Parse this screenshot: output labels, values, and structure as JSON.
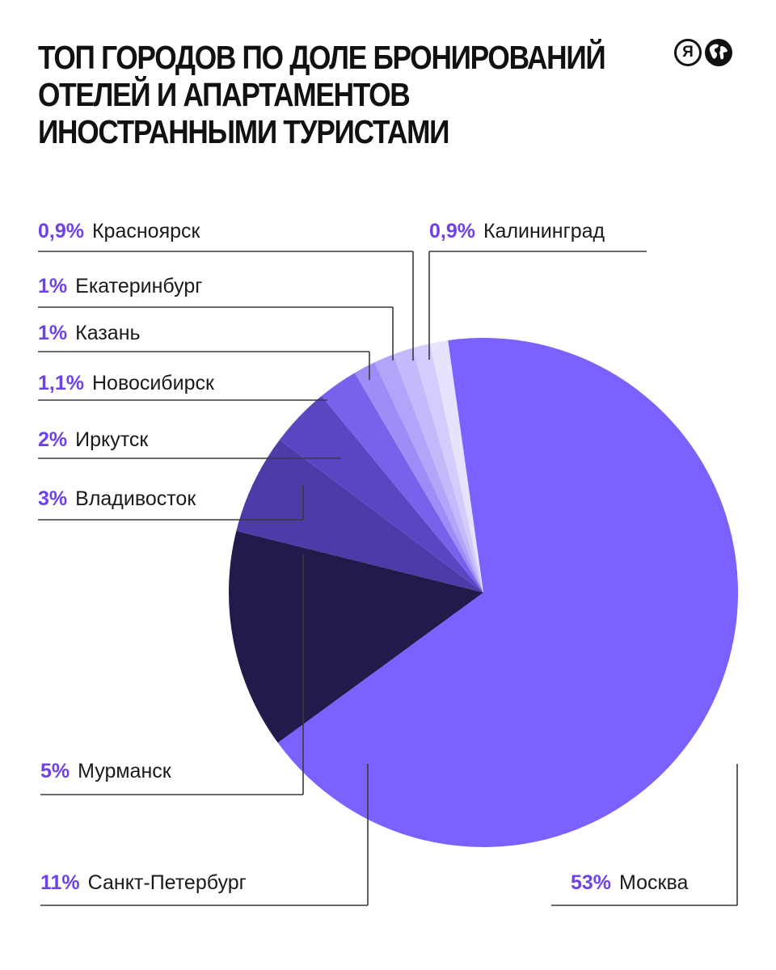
{
  "title_lines": [
    "ТОП ГОРОДОВ ПО ДОЛЕ БРОНИРОВАНИЙ",
    "ОТЕЛЕЙ И АПАРТАМЕНТОВ",
    "ИНОСТРАННЫМИ ТУРИСТАМИ"
  ],
  "logo": {
    "letter": "Я",
    "icons": [
      "yandex-logo-icon",
      "globe-icon"
    ]
  },
  "chart_data": {
    "type": "pie",
    "title": "ТОП ГОРОДОВ ПО ДОЛЕ БРОНИРОВАНИЙ ОТЕЛЕЙ И АПАРТАМЕНТОВ ИНОСТРАННЫМИ ТУРИСТАМИ",
    "slices": [
      {
        "label": "Москва",
        "value_label": "53%",
        "value": 53,
        "color": "#7b61ff"
      },
      {
        "label": "Санкт-Петербург",
        "value_label": "11%",
        "value": 11,
        "color": "#221a4a"
      },
      {
        "label": "Мурманск",
        "value_label": "5%",
        "value": 5,
        "color": "#4e3ba8"
      },
      {
        "label": "Владивосток",
        "value_label": "3%",
        "value": 3,
        "color": "#5b46c2"
      },
      {
        "label": "Иркутск",
        "value_label": "2%",
        "value": 2,
        "color": "#7a61ec"
      },
      {
        "label": "Новосибирск",
        "value_label": "1,1%",
        "value": 1.1,
        "color": "#a08cf7"
      },
      {
        "label": "Казань",
        "value_label": "1%",
        "value": 1,
        "color": "#b3a4f9"
      },
      {
        "label": "Екатеринбург",
        "value_label": "1%",
        "value": 1,
        "color": "#c4b9fb"
      },
      {
        "label": "Красноярск",
        "value_label": "0,9%",
        "value": 0.9,
        "color": "#d4ccfc"
      },
      {
        "label": "Калининград",
        "value_label": "0,9%",
        "value": 0.9,
        "color": "#e7e2fe"
      }
    ]
  }
}
